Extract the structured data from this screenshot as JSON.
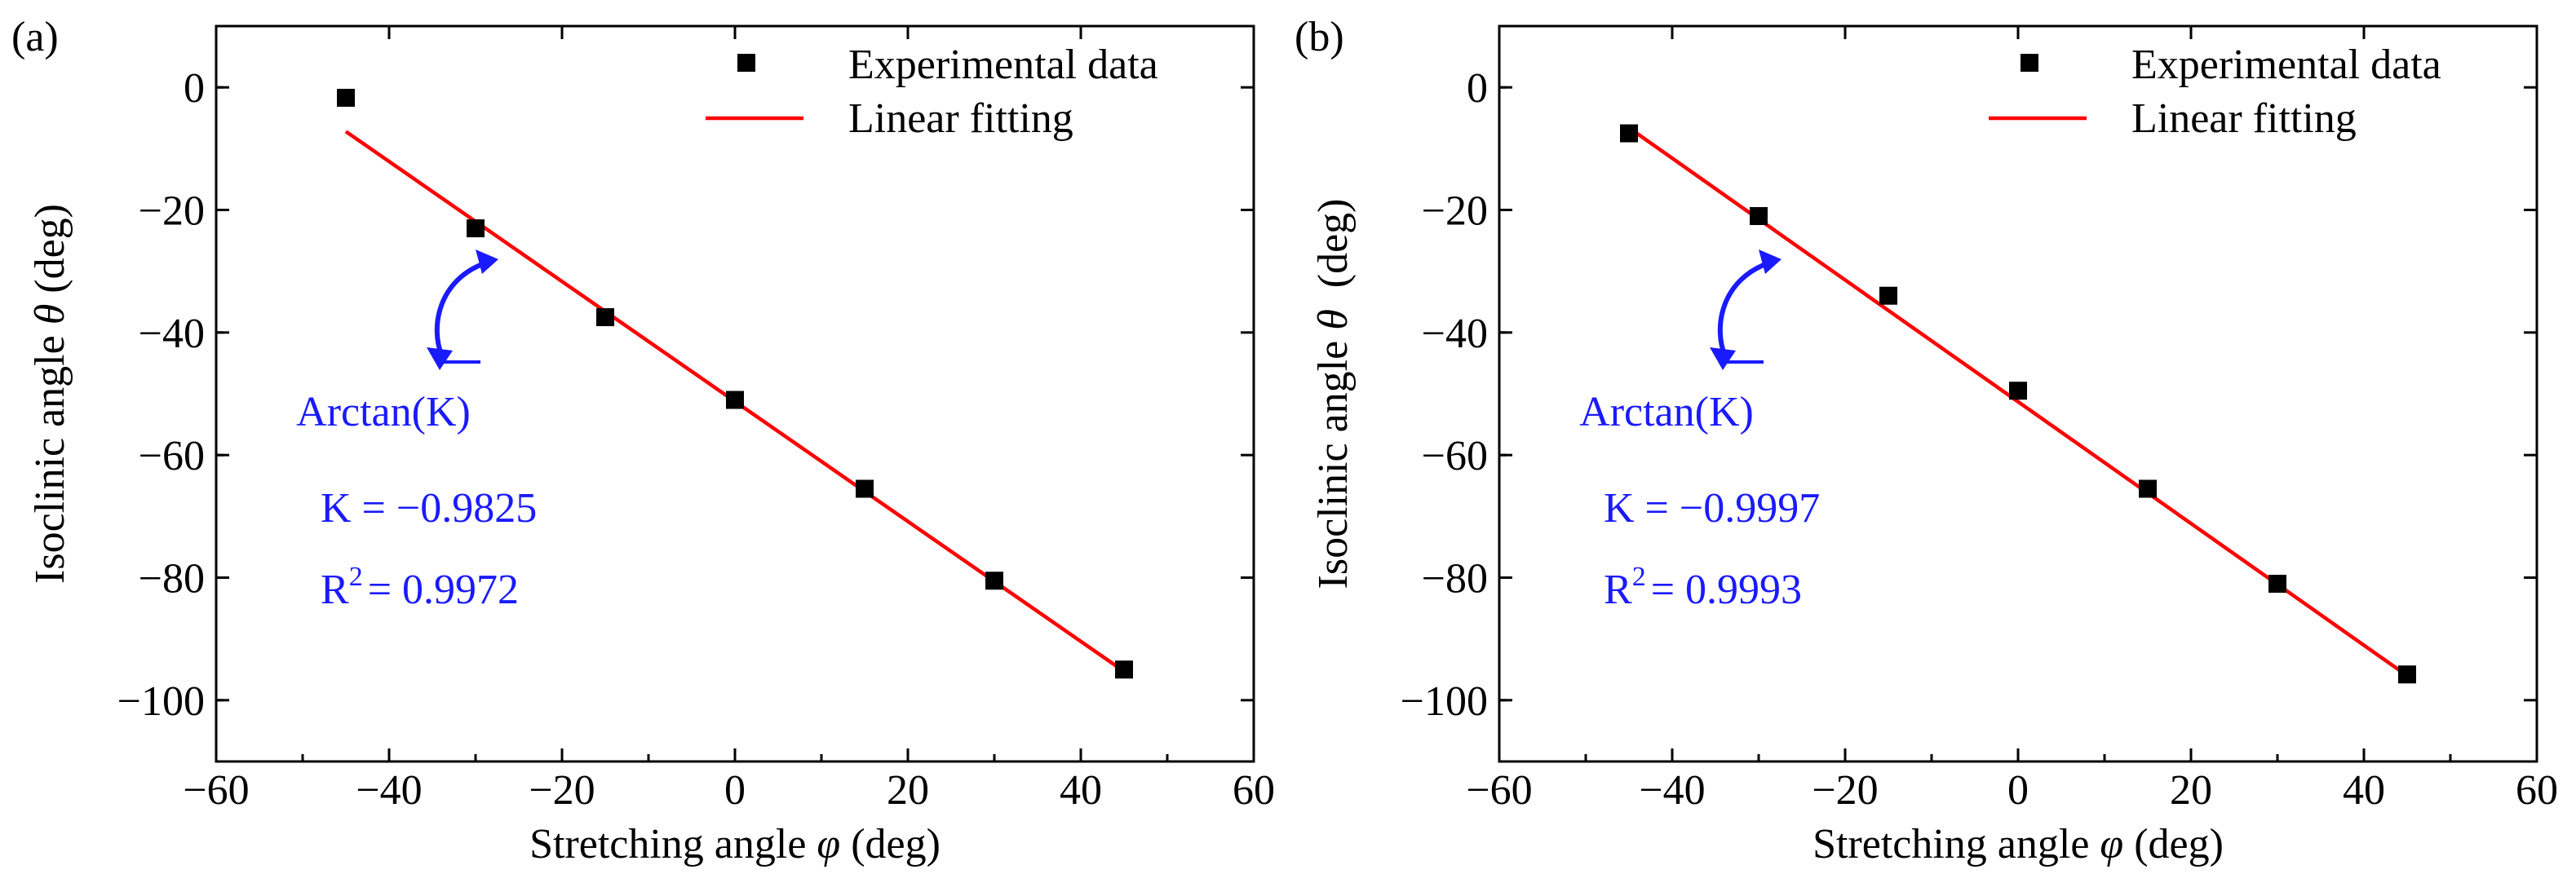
{
  "chart_data": [
    {
      "panel_label": "(a)",
      "type": "scatter",
      "xlabel_prefix": "Stretching angle ",
      "xlabel_symbol": "φ",
      "xlabel_suffix": " (deg)",
      "ylabel_prefix": "Isoclinic angle ",
      "ylabel_symbol": "θ",
      "ylabel_suffix": " (deg)",
      "xlim": [
        -60,
        60
      ],
      "ylim": [
        -110,
        10
      ],
      "xticks": [
        -60,
        -40,
        -20,
        0,
        20,
        40,
        60
      ],
      "xtick_labels": [
        "−60",
        "−40",
        "−20",
        "0",
        "20",
        "40",
        "60"
      ],
      "yticks": [
        0,
        -20,
        -40,
        -60,
        -80,
        -100
      ],
      "ytick_labels": [
        "0",
        "−20",
        "−40",
        "−60",
        "−80",
        "−100"
      ],
      "series": [
        {
          "name": "Experimental data",
          "kind": "markers",
          "marker": "square",
          "color": "#000000",
          "x": [
            -45,
            -30,
            -15,
            0,
            15,
            30,
            45
          ],
          "y": [
            -1.7,
            -23,
            -37.5,
            -51,
            -65.5,
            -80.5,
            -95
          ]
        },
        {
          "name": "Linear fitting",
          "kind": "line",
          "color": "#ff0000",
          "x": [
            -45,
            45
          ],
          "y": [
            -7.2,
            -95.3
          ]
        }
      ],
      "legend": {
        "position": "top-right",
        "entries": [
          "Experimental data",
          "Linear fitting"
        ]
      },
      "annotations": {
        "arctan": "Arctan(K)",
        "k_text": "K = −0.9825",
        "r2_prefix": "R",
        "r2_sup": "2",
        "r2_value": "= 0.9972",
        "color": "#1a1aff"
      }
    },
    {
      "panel_label": "(b)",
      "type": "scatter",
      "xlabel_prefix": "Stretching angle ",
      "xlabel_symbol": "φ",
      "xlabel_suffix": " (deg)",
      "ylabel_prefix": "Isoclinic angle ",
      "ylabel_symbol": "θ",
      "ylabel_suffix": "  (deg)",
      "xlim": [
        -60,
        60
      ],
      "ylim": [
        -110,
        10
      ],
      "xticks": [
        -60,
        -40,
        -20,
        0,
        20,
        40,
        60
      ],
      "xtick_labels": [
        "−60",
        "−40",
        "−20",
        "0",
        "20",
        "40",
        "60"
      ],
      "yticks": [
        0,
        -20,
        -40,
        -60,
        -80,
        -100
      ],
      "ytick_labels": [
        "0",
        "−20",
        "−40",
        "−60",
        "−80",
        "−100"
      ],
      "series": [
        {
          "name": "Experimental data",
          "kind": "markers",
          "marker": "square",
          "color": "#000000",
          "x": [
            -45,
            -30,
            -15,
            0,
            15,
            30,
            45
          ],
          "y": [
            -7.5,
            -21,
            -34,
            -49.5,
            -65.5,
            -81,
            -95.8
          ]
        },
        {
          "name": "Linear fitting",
          "kind": "line",
          "color": "#ff0000",
          "x": [
            -45,
            45
          ],
          "y": [
            -6.6,
            -96.0
          ]
        }
      ],
      "legend": {
        "position": "top-right",
        "entries": [
          "Experimental data",
          "Linear fitting"
        ]
      },
      "annotations": {
        "arctan": "Arctan(K)",
        "k_text": "K = −0.9997",
        "r2_prefix": "R",
        "r2_sup": "2",
        "r2_value": "= 0.9993",
        "color": "#1a1aff"
      }
    }
  ]
}
